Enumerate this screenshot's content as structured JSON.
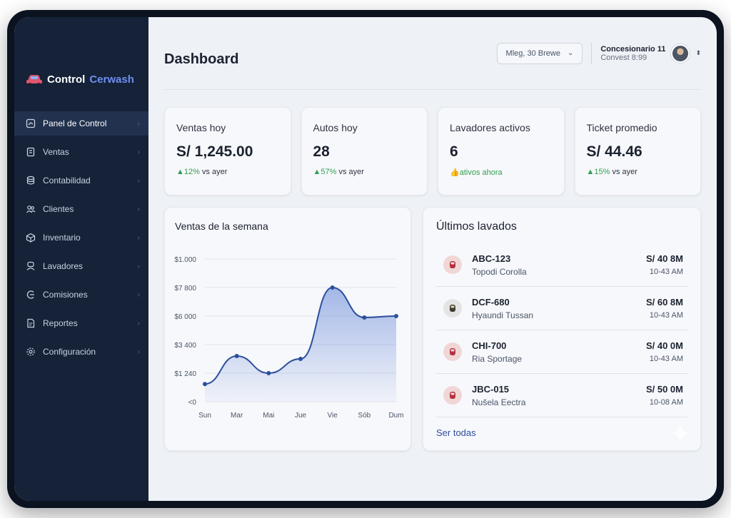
{
  "brand": {
    "name": "Control",
    "accent": "Cerwash"
  },
  "sidebar": {
    "items": [
      {
        "label": "Panel de Control",
        "icon": "dashboard-icon",
        "active": true
      },
      {
        "label": "Ventas",
        "icon": "receipt-icon"
      },
      {
        "label": "Contabilidad",
        "icon": "database-icon"
      },
      {
        "label": "Clientes",
        "icon": "users-icon"
      },
      {
        "label": "Inventario",
        "icon": "box-icon"
      },
      {
        "label": "Lavadores",
        "icon": "worker-icon"
      },
      {
        "label": "Comisiones",
        "icon": "commission-icon"
      },
      {
        "label": "Reportes",
        "icon": "report-icon"
      },
      {
        "label": "Configuración",
        "icon": "gear-icon"
      }
    ]
  },
  "header": {
    "title": "Dashboard",
    "location_select": "Mleg, 30 Brewe",
    "user": {
      "name": "Concesionario 11",
      "sub": "Convest 8:99"
    }
  },
  "stats": [
    {
      "label": "Ventas hoy",
      "value": "S/ 1,245.00",
      "delta": "12%",
      "delta_suffix": " vs ayer"
    },
    {
      "label": "Autos hoy",
      "value": "28",
      "delta": "57%",
      "delta_suffix": " vs ayer"
    },
    {
      "label": "Lavadores activos",
      "value": "6",
      "delta": "ativos ahora",
      "delta_suffix": ""
    },
    {
      "label": "Ticket promedio",
      "value": "S/ 44.46",
      "delta": "15%",
      "delta_suffix": " vs ayer"
    }
  ],
  "colors": {
    "accent": "#2c4f9e",
    "positive": "#2f9e52",
    "sidebar": "#152238"
  },
  "chart_data": {
    "type": "area",
    "title": "Ventas de la semana",
    "categories": [
      "Sun",
      "Mar",
      "Mai",
      "Jue",
      "Vie",
      "Sób",
      "Dum"
    ],
    "values": [
      1240,
      3200,
      2000,
      3000,
      8000,
      5900,
      6000
    ],
    "y_ticks": [
      "<0",
      "$1 240",
      "$3 400",
      "$6 000",
      "$7 800",
      "$1.000"
    ],
    "ylim": [
      0,
      10000
    ],
    "grid": true
  },
  "recent": {
    "title": "Últimos lavados",
    "items": [
      {
        "plate": "ABC-123",
        "model": "Topodi Corolla",
        "amount": "S/ 40 8M",
        "time": "10-43 AM"
      },
      {
        "plate": "DCF-680",
        "model": "Hyaundi Tussan",
        "amount": "S/ 60 8M",
        "time": "10-43 AM"
      },
      {
        "plate": "CHI-700",
        "model": "Ria Sportage",
        "amount": "S/ 40 0M",
        "time": "10-43 AM"
      },
      {
        "plate": "JBC-015",
        "model": "Nušela Eectra",
        "amount": "S/ 50 0M",
        "time": "10-08 AM"
      }
    ],
    "see_all": "Ser todas"
  }
}
